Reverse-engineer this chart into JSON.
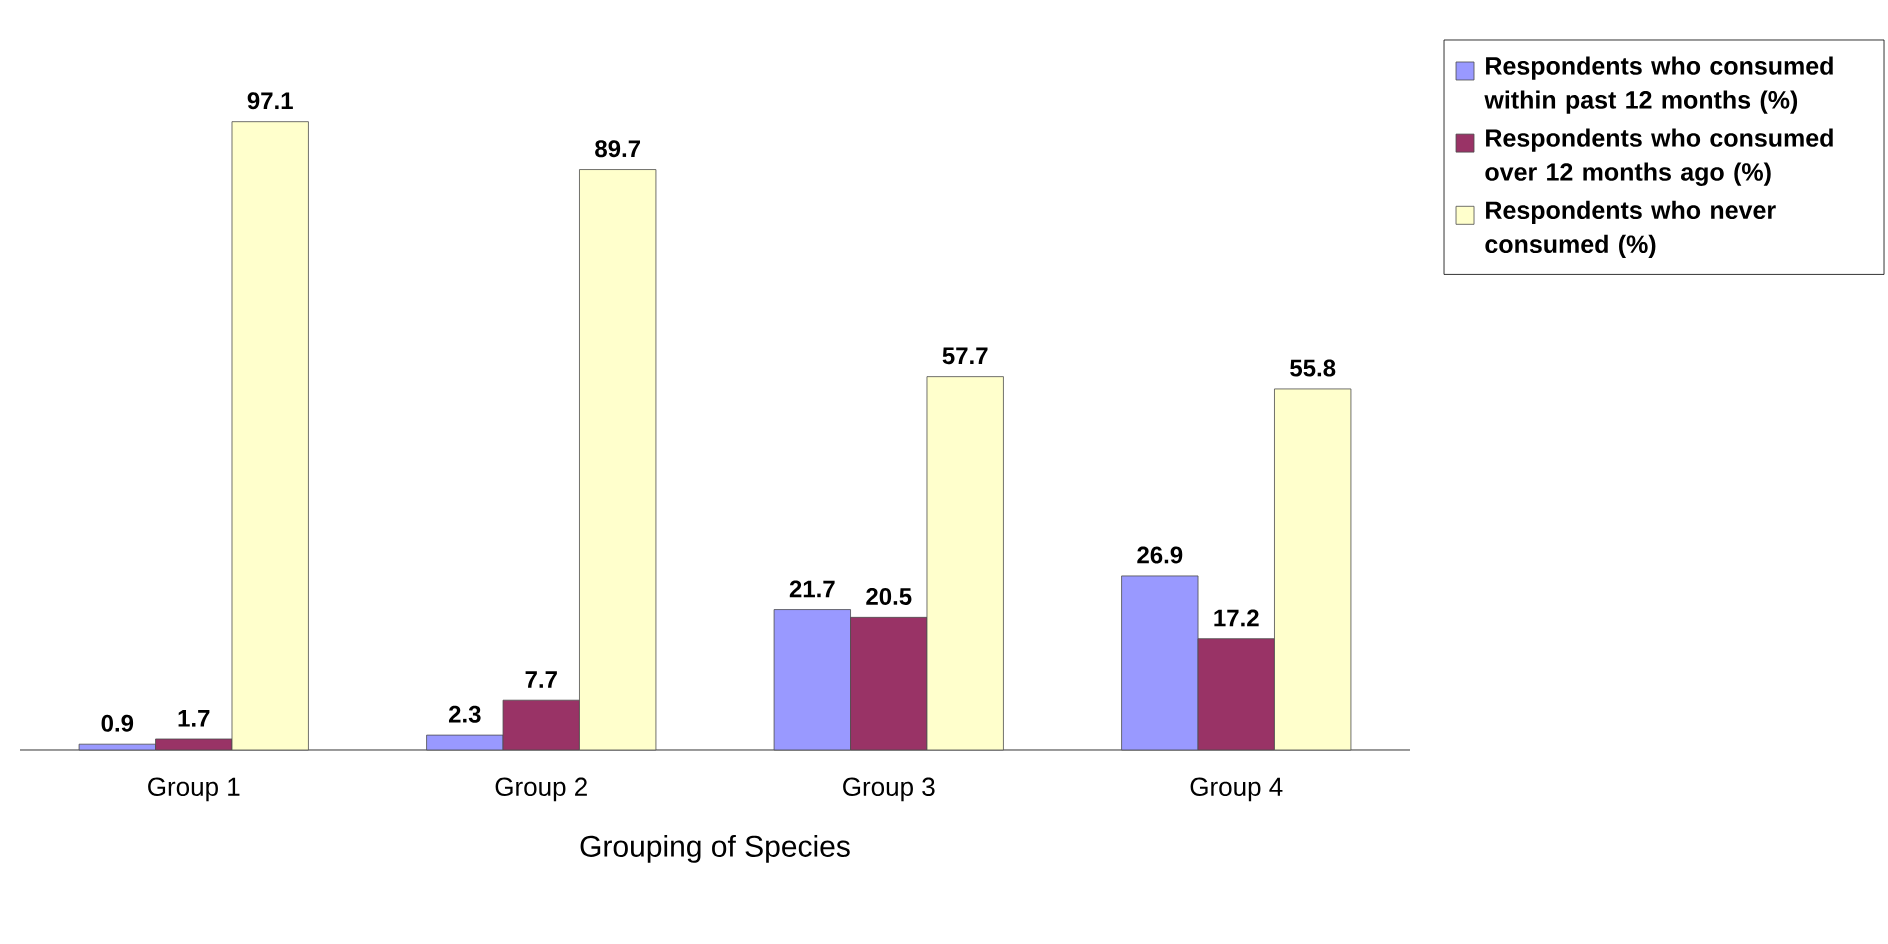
{
  "chart_data": {
    "type": "bar",
    "xlabel": "Grouping of Species",
    "categories": [
      "Group 1",
      "Group 2",
      "Group 3",
      "Group 4"
    ],
    "series": [
      {
        "name": "Respondents who consumed within past 12 months (%)",
        "color": "#9999ff",
        "values": [
          0.9,
          2.3,
          21.7,
          26.9
        ]
      },
      {
        "name": "Respondents who consumed over 12 months ago (%)",
        "color": "#993366",
        "values": [
          1.7,
          7.7,
          20.5,
          17.2
        ]
      },
      {
        "name": "Respondents who never consumed (%)",
        "color": "#ffffcc",
        "values": [
          97.1,
          89.7,
          57.7,
          55.8
        ]
      }
    ],
    "data_labels": true,
    "legend": "right"
  }
}
